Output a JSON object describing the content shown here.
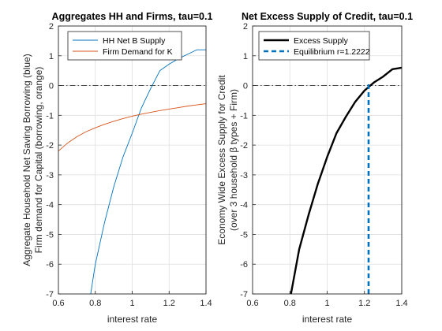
{
  "chart_data": [
    {
      "type": "line",
      "title": "Aggregates HH and Firms, tau=0.1",
      "xlabel": "interest rate",
      "ylabel_lines": [
        "Aggregate Household Net Saving Borrowing (blue)",
        "Firm demand for Capital (borrowing, orange)"
      ],
      "xlim": [
        0.6,
        1.4
      ],
      "ylim": [
        -7,
        2
      ],
      "xticks": [
        "0.6",
        "0.8",
        "1",
        "1.2",
        "1.4"
      ],
      "yticks": [
        "-7",
        "-6",
        "-5",
        "-4",
        "-3",
        "-2",
        "-1",
        "0",
        "1",
        "2"
      ],
      "grid": true,
      "legend_position": "top-right",
      "hline": {
        "y": 0,
        "style": "dash-dot",
        "color": "#333333"
      },
      "series": [
        {
          "name": "HH Net B Supply",
          "color": "#0072BD",
          "width": 0.9,
          "x": [
            0.75,
            0.8,
            0.85,
            0.9,
            0.95,
            1.0,
            1.05,
            1.1,
            1.15,
            1.2,
            1.25,
            1.3,
            1.35,
            1.4
          ],
          "y": [
            -8.0,
            -6.0,
            -4.6,
            -3.4,
            -2.4,
            -1.6,
            -0.75,
            -0.1,
            0.5,
            0.72,
            0.9,
            1.05,
            1.2,
            1.2
          ]
        },
        {
          "name": "Firm Demand for K",
          "color": "#D95319",
          "width": 0.9,
          "x": [
            0.6,
            0.65,
            0.7,
            0.75,
            0.8,
            0.85,
            0.9,
            0.95,
            1.0,
            1.05,
            1.1,
            1.15,
            1.2,
            1.25,
            1.3,
            1.35,
            1.4
          ],
          "y": [
            -2.2,
            -1.93,
            -1.72,
            -1.55,
            -1.42,
            -1.3,
            -1.2,
            -1.11,
            -1.03,
            -0.96,
            -0.9,
            -0.84,
            -0.79,
            -0.74,
            -0.69,
            -0.65,
            -0.61
          ]
        }
      ]
    },
    {
      "type": "line",
      "title": "Net Excess Supply of Credit, tau=0.1",
      "xlabel": "interest rate",
      "ylabel_lines": [
        "Economy Wide Excess Supply for Credit",
        "(over 3 household β types + Firm)"
      ],
      "xlim": [
        0.6,
        1.4
      ],
      "ylim": [
        -7,
        2
      ],
      "xticks": [
        "0.6",
        "0.8",
        "1",
        "1.2",
        "1.4"
      ],
      "yticks": [
        "-7",
        "-6",
        "-5",
        "-4",
        "-3",
        "-2",
        "-1",
        "0",
        "1",
        "2"
      ],
      "grid": true,
      "legend_position": "top-left",
      "hline": {
        "y": 0,
        "style": "dash-dot",
        "color": "#333333"
      },
      "series": [
        {
          "name": "Excess Supply",
          "color": "#000000",
          "width": 2.4,
          "dash": "",
          "x": [
            0.8,
            0.85,
            0.9,
            0.95,
            1.0,
            1.05,
            1.1,
            1.15,
            1.2,
            1.25,
            1.3,
            1.35,
            1.4
          ],
          "y": [
            -7.2,
            -5.5,
            -4.35,
            -3.3,
            -2.4,
            -1.6,
            -1.05,
            -0.55,
            -0.17,
            0.1,
            0.3,
            0.55,
            0.6
          ]
        },
        {
          "name": "Equilibrium r=1.2222",
          "color": "#0072BD",
          "width": 2.6,
          "dash": "6,4",
          "x": [
            1.2222,
            1.2222
          ],
          "y": [
            -7,
            0.1
          ]
        }
      ]
    }
  ]
}
